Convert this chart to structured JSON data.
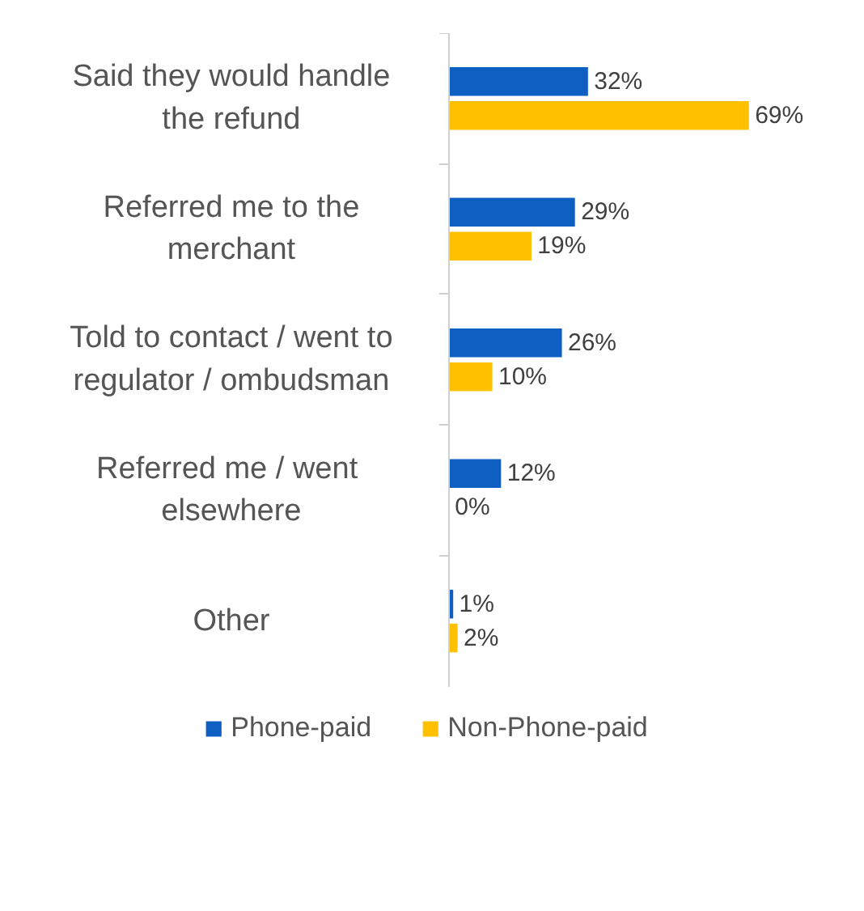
{
  "chart_data": {
    "type": "bar",
    "orientation": "horizontal",
    "categories": [
      "Said they would handle the refund",
      "Referred me to the merchant",
      "Told to contact / went to regulator / ombudsman",
      "Referred me  / went elsewhere",
      "Other"
    ],
    "series": [
      {
        "name": "Phone-paid",
        "color": "#0f5fc2",
        "values": [
          32,
          29,
          26,
          12,
          1
        ],
        "value_labels": [
          "32%",
          "29%",
          "26%",
          "12%",
          "1%"
        ]
      },
      {
        "name": "Non-Phone-paid",
        "color": "#ffc000",
        "values": [
          69,
          19,
          10,
          0,
          2
        ],
        "value_labels": [
          "69%",
          "19%",
          "10%",
          "0%",
          "2%"
        ]
      }
    ],
    "legend": "bottom",
    "grid": false
  }
}
